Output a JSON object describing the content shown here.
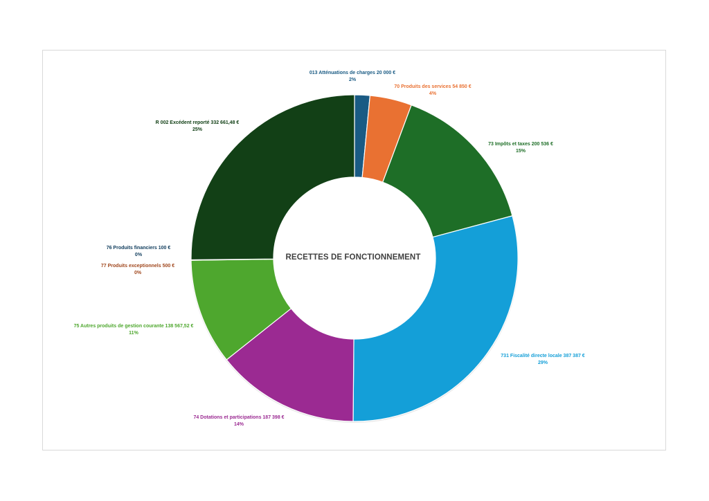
{
  "chart_data": {
    "type": "pie",
    "title": "RECETTES DE FONCTIONNEMENT",
    "slices": [
      {
        "label": "013 Atténuations de charges 20 000 €",
        "value": 20000,
        "percent": "2%",
        "color": "#1a5b84"
      },
      {
        "label": "70 Produits des services 54 850 €",
        "value": 54850,
        "percent": "4%",
        "color": "#e97132"
      },
      {
        "label": "73 Impôts et taxes 200 536 €",
        "value": 200536,
        "percent": "15%",
        "color": "#1e6e27"
      },
      {
        "label": "731 Fiscalité directe locale 387 387 €",
        "value": 387387,
        "percent": "29%",
        "color": "#149fd8"
      },
      {
        "label": "74 Dotations et participations 187 398 €",
        "value": 187398,
        "percent": "14%",
        "color": "#9b2a92"
      },
      {
        "label": "75 Autres produits de gestion courante 138 567,52 €",
        "value": 138567.52,
        "percent": "11%",
        "color": "#4ea72e"
      },
      {
        "label": "77 Produits exceptionnels 500 €",
        "value": 500,
        "percent": "0%",
        "color": "#a0471d"
      },
      {
        "label": "76 Produits financiers 100 €",
        "value": 100,
        "percent": "0%",
        "color": "#0f3c5c"
      },
      {
        "label": "R 002 Excédent reporté 332 661,48 €",
        "value": 332661.48,
        "percent": "25%",
        "color": "#124016"
      }
    ]
  }
}
